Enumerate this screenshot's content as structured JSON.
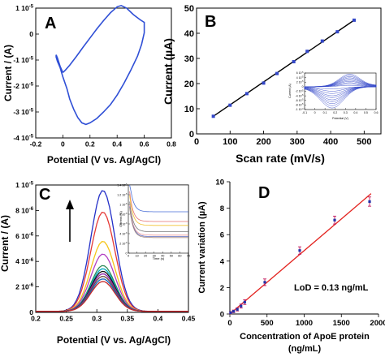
{
  "colors": {
    "blue": "#3347c8",
    "cv_line": "#2f4fd6",
    "fit_line": "#000000",
    "d_fit": "#e3231f",
    "d_err": "#c2185b",
    "d_point": "#2233aa"
  },
  "chart_data": [
    {
      "panel": "A",
      "type": "line",
      "xlabel": "Potential (V vs. Ag/AgCl)",
      "ylabel": "Current / (A)",
      "xlim": [
        -0.2,
        0.8
      ],
      "ylim": [
        -4e-05,
        1e-05
      ],
      "xticks": [
        "-0.2",
        "0",
        "0.2",
        "0.4",
        "0.6",
        "0.8"
      ],
      "yticks": [
        "1 10-5",
        "0",
        "-1 10-5",
        "-2 10-5",
        "-3 10-5",
        "-4 10-5"
      ],
      "series": [
        {
          "x": [
            0.0,
            0.02,
            0.05,
            0.1,
            0.15,
            0.2,
            0.25,
            0.3,
            0.35,
            0.4,
            0.43,
            0.47,
            0.52,
            0.57,
            0.6,
            0.6,
            0.58,
            0.55,
            0.5,
            0.45,
            0.4,
            0.35,
            0.3,
            0.25,
            0.2,
            0.17,
            0.14,
            0.11,
            0.08,
            0.05,
            0.03,
            0.0,
            -0.02,
            -0.04,
            -0.05,
            -0.05,
            -0.04,
            -0.02,
            0.0
          ],
          "y": [
            -1.48e-05,
            -1.38e-05,
            -1.2e-05,
            -8.6e-06,
            -5e-06,
            -1.5e-06,
            2e-06,
            5.2e-06,
            8.2e-06,
            1.05e-05,
            1.1e-05,
            1e-05,
            7.5e-06,
            5.5e-06,
            4.5e-06,
            5e-07,
            -4e-06,
            -8.5e-06,
            -1.4e-05,
            -1.9e-05,
            -2.35e-05,
            -2.72e-05,
            -3e-05,
            -3.25e-05,
            -3.42e-05,
            -3.48e-05,
            -3.42e-05,
            -3.22e-05,
            -2.9e-05,
            -2.5e-05,
            -2.1e-05,
            -1.65e-05,
            -1.3e-05,
            -1.05e-05,
            -8.8e-06,
            -8e-06,
            -9.2e-06,
            -1.25e-05,
            -1.48e-05
          ]
        }
      ]
    },
    {
      "panel": "B",
      "type": "scatter",
      "xlabel": "Scan rate (mV/s)",
      "ylabel": "Current (µA)",
      "xlim": [
        0,
        550
      ],
      "ylim": [
        0,
        50
      ],
      "xticks": [
        "0",
        "100",
        "200",
        "300",
        "400",
        "500"
      ],
      "yticks": [
        "0",
        "10",
        "20",
        "30",
        "40",
        "50"
      ],
      "x": [
        50,
        100,
        150,
        200,
        240,
        290,
        330,
        375,
        420,
        470
      ],
      "y": [
        7.0,
        11.4,
        16.0,
        20.2,
        24.0,
        28.7,
        32.8,
        36.9,
        40.6,
        45.2
      ],
      "fit": {
        "x": [
          50,
          470
        ],
        "y": [
          7.0,
          45.2
        ]
      },
      "inset": {
        "type": "line",
        "xlabel": "Potential (V)",
        "ylabel": "Current (A)",
        "xlim": [
          -0.1,
          0.6
        ],
        "ylim": [
          -0.0001,
          6e-05
        ],
        "xticks": [
          "-0.1",
          "0",
          "0.1",
          "0.2",
          "0.3",
          "0.4",
          "0.5",
          "0.6"
        ],
        "yticks": [
          "6 10-5",
          "4 10-5",
          "2 10-5",
          "0",
          "-2 10-5",
          "-4 10-5",
          "-6 10-5",
          "-8 10-5",
          "-1 10-4"
        ],
        "scan_rates": [
          50,
          100,
          150,
          200,
          240,
          290,
          330,
          375,
          420,
          470
        ]
      }
    },
    {
      "panel": "C",
      "type": "line",
      "xlabel": "Potential (V vs. Ag/AgCl)",
      "ylabel": "Current / (A)",
      "xlim": [
        0.2,
        0.45
      ],
      "ylim": [
        0,
        1e-05
      ],
      "xticks": [
        "0.2",
        "0.25",
        "0.3",
        "0.35",
        "0.4",
        "0.45"
      ],
      "yticks": [
        "0",
        "2 10-6",
        "4 10-6",
        "6 10-6",
        "8 10-6",
        "1 10-5"
      ],
      "peak_potential": 0.31,
      "series": [
        {
          "peak": 9.5e-06,
          "color": "#2430c8"
        },
        {
          "peak": 7.8e-06,
          "color": "#e53935"
        },
        {
          "peak": 5.5e-06,
          "color": "#f5c518"
        },
        {
          "peak": 4.5e-06,
          "color": "#b23fc2"
        },
        {
          "peak": 3.6e-06,
          "color": "#2e8b57"
        },
        {
          "peak": 3.35e-06,
          "color": "#00acc1"
        },
        {
          "peak": 3.15e-06,
          "color": "#111111"
        },
        {
          "peak": 2.95e-06,
          "color": "#8e24aa"
        },
        {
          "peak": 2.75e-06,
          "color": "#6d4c41"
        },
        {
          "peak": 2.55e-06,
          "color": "#1565c0"
        },
        {
          "peak": 2.35e-06,
          "color": "#c62828"
        }
      ],
      "inset": {
        "type": "line",
        "xlabel": "Time (s)",
        "ylabel": "Current (A)",
        "xlim": [
          0,
          70
        ],
        "ylim": [
          0,
          1.4e-05
        ],
        "xticks": [
          "0",
          "10",
          "20",
          "30",
          "40",
          "50",
          "60",
          "70"
        ],
        "yticks": [
          "1.4 10-5",
          "1.2 10-5",
          "1 10-5",
          "8 10-6",
          "6 10-6",
          "4 10-6",
          "2 10-6",
          "0"
        ],
        "series": [
          {
            "plateau": 8.5e-06,
            "color": "#4a6fd6"
          },
          {
            "plateau": 6.5e-06,
            "color": "#e57373"
          },
          {
            "plateau": 5.7e-06,
            "color": "#f2c230"
          },
          {
            "plateau": 4.4e-06,
            "color": "#7a7a7a"
          },
          {
            "plateau": 3.7e-06,
            "color": "#ef9a9a"
          },
          {
            "plateau": 3.4e-06,
            "color": "#5c6bc0"
          },
          {
            "plateau": 3.2e-06,
            "color": "#a1887f"
          }
        ]
      }
    },
    {
      "panel": "D",
      "type": "scatter",
      "xlabel": "Concentration of ApoE protein (ng/mL)",
      "ylabel": "Current variation (µA)",
      "xlim": [
        0,
        2000
      ],
      "ylim": [
        0,
        10
      ],
      "xticks": [
        "0",
        "500",
        "1000",
        "1500",
        "2000"
      ],
      "yticks": [
        "0",
        "2",
        "4",
        "6",
        "8",
        "10"
      ],
      "x": [
        10,
        50,
        100,
        150,
        200,
        470,
        940,
        1410,
        1880
      ],
      "y": [
        0.1,
        0.2,
        0.35,
        0.6,
        0.9,
        2.4,
        4.8,
        7.1,
        8.5
      ],
      "error": [
        0.08,
        0.1,
        0.12,
        0.15,
        0.18,
        0.25,
        0.28,
        0.3,
        0.35
      ],
      "fit": {
        "x": [
          0,
          1900
        ],
        "y": [
          0.0,
          9.1
        ]
      },
      "annotation": "LoD = 0.13 ng/mL"
    }
  ],
  "panel_labels": {
    "A": "A",
    "B": "B",
    "C": "C",
    "D": "D"
  },
  "axis_text": {
    "a_x": "Potential (V vs. Ag/AgCl)",
    "a_y": "Current / (A)",
    "b_x": "Scan rate (mV/s)",
    "b_y": "Current (µA)",
    "b_inset_x": "Potential (V)",
    "b_inset_y": "Current (A)",
    "c_x": "Potential (V vs. Ag/AgCl)",
    "c_y": "Current / (A)",
    "c_inset_x": "Time (s)",
    "c_inset_y": "Current (A)",
    "d_x1": "Concentration of ApoE protein",
    "d_x2": "(ng/mL)",
    "d_y": "Current variation (µA)",
    "d_lod": "LoD = 0.13 ng/mL"
  }
}
